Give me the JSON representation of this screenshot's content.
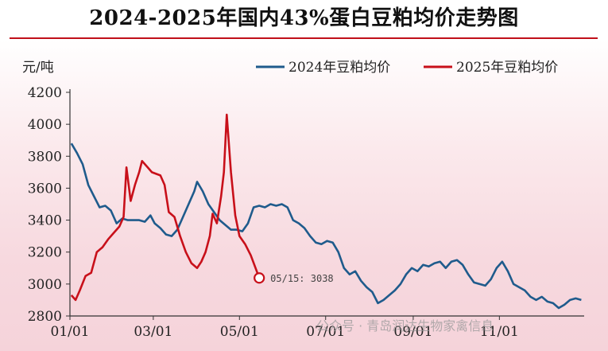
{
  "title": "2024-2025年国内43%蛋白豆粕均价走势图",
  "watermark": "公众号 · 青岛润达生物家禽信息",
  "colors": {
    "series_2024": "#1f5b8c",
    "series_2025": "#c8101a",
    "accent_rule": "#c0101a"
  },
  "chart_data": {
    "type": "line",
    "ylabel": "元/吨",
    "ylim": [
      2800,
      4200
    ],
    "yticks": [
      "4200",
      "4000",
      "3800",
      "3600",
      "3400",
      "3200",
      "3000",
      "2800"
    ],
    "xlim": [
      "01/01",
      "12/31"
    ],
    "xticks": [
      "01/01",
      "03/01",
      "05/01",
      "07/01",
      "09/01",
      "11/01"
    ],
    "legend_position": "top-right",
    "annotation": "05/15: 3038",
    "series": [
      {
        "name": "2024年豆粕均价",
        "points": [
          [
            "01/02",
            3880
          ],
          [
            "01/06",
            3820
          ],
          [
            "01/10",
            3750
          ],
          [
            "01/14",
            3620
          ],
          [
            "01/18",
            3550
          ],
          [
            "01/22",
            3480
          ],
          [
            "01/26",
            3490
          ],
          [
            "01/30",
            3460
          ],
          [
            "02/03",
            3380
          ],
          [
            "02/07",
            3410
          ],
          [
            "02/11",
            3400
          ],
          [
            "02/15",
            3400
          ],
          [
            "02/19",
            3400
          ],
          [
            "02/23",
            3390
          ],
          [
            "02/27",
            3430
          ],
          [
            "03/02",
            3380
          ],
          [
            "03/06",
            3350
          ],
          [
            "03/10",
            3310
          ],
          [
            "03/14",
            3300
          ],
          [
            "03/18",
            3340
          ],
          [
            "03/22",
            3420
          ],
          [
            "03/26",
            3500
          ],
          [
            "03/30",
            3580
          ],
          [
            "04/01",
            3640
          ],
          [
            "04/05",
            3580
          ],
          [
            "04/09",
            3500
          ],
          [
            "04/13",
            3450
          ],
          [
            "04/17",
            3400
          ],
          [
            "04/21",
            3370
          ],
          [
            "04/25",
            3340
          ],
          [
            "04/29",
            3340
          ],
          [
            "05/03",
            3330
          ],
          [
            "05/07",
            3380
          ],
          [
            "05/11",
            3480
          ],
          [
            "05/15",
            3490
          ],
          [
            "05/19",
            3480
          ],
          [
            "05/23",
            3500
          ],
          [
            "05/27",
            3490
          ],
          [
            "05/31",
            3500
          ],
          [
            "06/04",
            3480
          ],
          [
            "06/08",
            3400
          ],
          [
            "06/12",
            3380
          ],
          [
            "06/16",
            3350
          ],
          [
            "06/20",
            3300
          ],
          [
            "06/24",
            3260
          ],
          [
            "06/28",
            3250
          ],
          [
            "07/02",
            3270
          ],
          [
            "07/06",
            3260
          ],
          [
            "07/10",
            3200
          ],
          [
            "07/14",
            3100
          ],
          [
            "07/18",
            3060
          ],
          [
            "07/22",
            3080
          ],
          [
            "07/26",
            3020
          ],
          [
            "07/30",
            2980
          ],
          [
            "08/03",
            2950
          ],
          [
            "08/07",
            2880
          ],
          [
            "08/11",
            2900
          ],
          [
            "08/15",
            2930
          ],
          [
            "08/19",
            2960
          ],
          [
            "08/23",
            3000
          ],
          [
            "08/27",
            3060
          ],
          [
            "08/31",
            3100
          ],
          [
            "09/04",
            3080
          ],
          [
            "09/08",
            3120
          ],
          [
            "09/12",
            3110
          ],
          [
            "09/16",
            3130
          ],
          [
            "09/20",
            3140
          ],
          [
            "09/24",
            3100
          ],
          [
            "09/28",
            3140
          ],
          [
            "10/02",
            3150
          ],
          [
            "10/06",
            3120
          ],
          [
            "10/10",
            3060
          ],
          [
            "10/14",
            3010
          ],
          [
            "10/18",
            3000
          ],
          [
            "10/22",
            2990
          ],
          [
            "10/26",
            3030
          ],
          [
            "10/30",
            3100
          ],
          [
            "11/03",
            3140
          ],
          [
            "11/07",
            3080
          ],
          [
            "11/11",
            3000
          ],
          [
            "11/15",
            2980
          ],
          [
            "11/19",
            2960
          ],
          [
            "11/23",
            2920
          ],
          [
            "11/27",
            2900
          ],
          [
            "12/01",
            2920
          ],
          [
            "12/05",
            2890
          ],
          [
            "12/09",
            2880
          ],
          [
            "12/13",
            2850
          ],
          [
            "12/17",
            2870
          ],
          [
            "12/21",
            2900
          ],
          [
            "12/25",
            2910
          ],
          [
            "12/29",
            2900
          ]
        ]
      },
      {
        "name": "2025年豆粕均价",
        "points": [
          [
            "01/02",
            2930
          ],
          [
            "01/05",
            2900
          ],
          [
            "01/08",
            2960
          ],
          [
            "01/12",
            3050
          ],
          [
            "01/16",
            3070
          ],
          [
            "01/20",
            3200
          ],
          [
            "01/24",
            3230
          ],
          [
            "01/28",
            3280
          ],
          [
            "02/01",
            3320
          ],
          [
            "02/05",
            3360
          ],
          [
            "02/08",
            3420
          ],
          [
            "02/10",
            3730
          ],
          [
            "02/13",
            3520
          ],
          [
            "02/16",
            3620
          ],
          [
            "02/19",
            3700
          ],
          [
            "02/21",
            3770
          ],
          [
            "02/25",
            3730
          ],
          [
            "02/28",
            3700
          ],
          [
            "03/03",
            3690
          ],
          [
            "03/06",
            3680
          ],
          [
            "03/09",
            3620
          ],
          [
            "03/12",
            3450
          ],
          [
            "03/16",
            3420
          ],
          [
            "03/20",
            3300
          ],
          [
            "03/24",
            3200
          ],
          [
            "03/28",
            3130
          ],
          [
            "04/01",
            3100
          ],
          [
            "04/04",
            3140
          ],
          [
            "04/07",
            3200
          ],
          [
            "04/10",
            3300
          ],
          [
            "04/12",
            3440
          ],
          [
            "04/15",
            3380
          ],
          [
            "04/18",
            3550
          ],
          [
            "04/20",
            3700
          ],
          [
            "04/22",
            4060
          ],
          [
            "04/25",
            3700
          ],
          [
            "04/28",
            3430
          ],
          [
            "05/01",
            3300
          ],
          [
            "05/05",
            3250
          ],
          [
            "05/09",
            3180
          ],
          [
            "05/15",
            3038
          ]
        ]
      }
    ]
  }
}
